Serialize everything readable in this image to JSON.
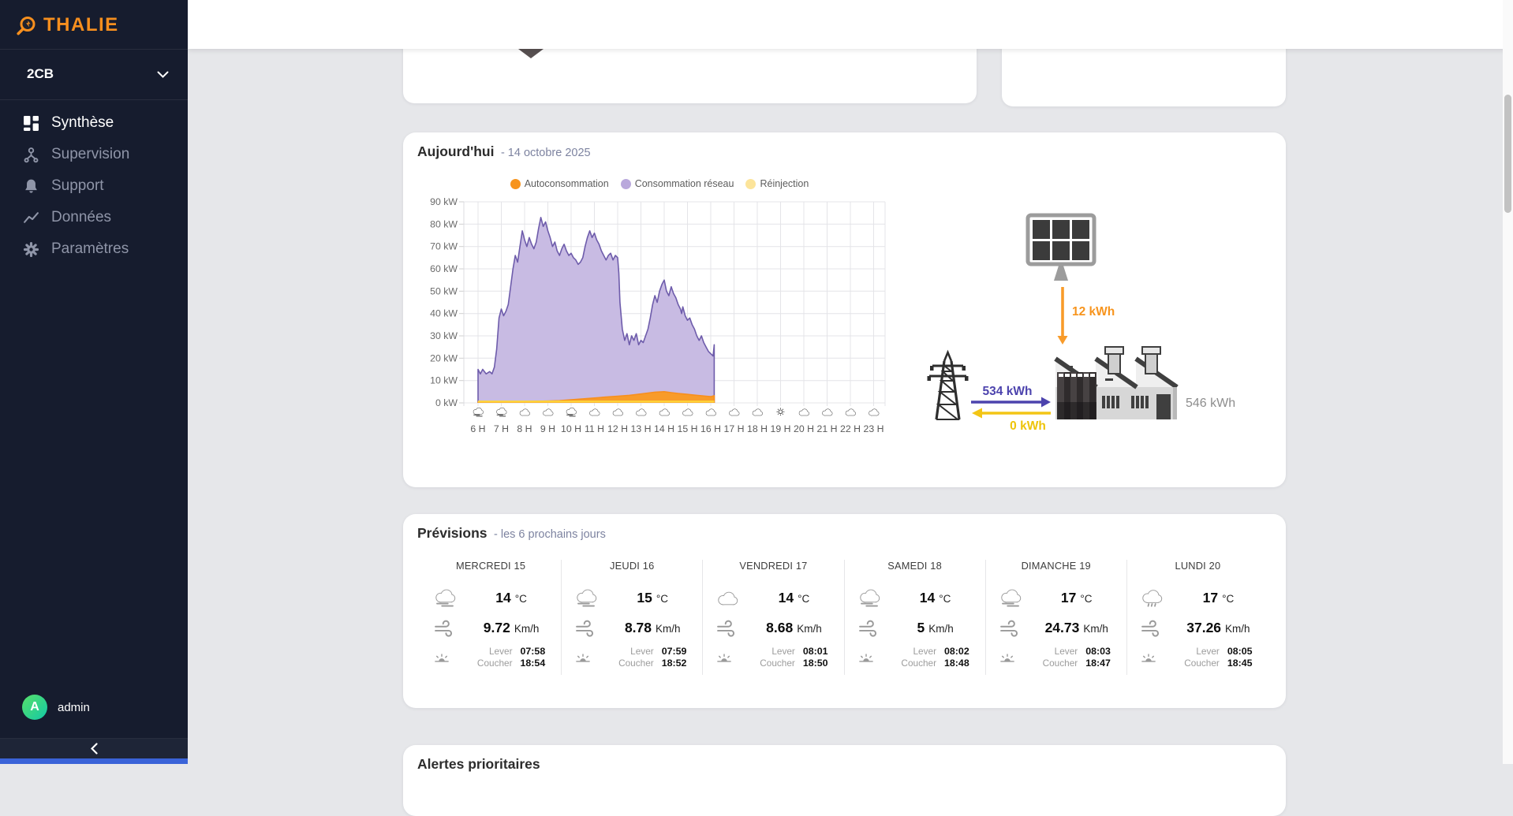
{
  "brand": {
    "logo_text": "THALIE"
  },
  "sidebar": {
    "site_selector": {
      "value": "2CB"
    },
    "items": [
      {
        "label": "Synthèse",
        "icon": "dashboard-icon",
        "active": true
      },
      {
        "label": "Supervision",
        "icon": "network-icon",
        "active": false
      },
      {
        "label": "Support",
        "icon": "bell-icon",
        "active": false
      },
      {
        "label": "Données",
        "icon": "trend-line-icon",
        "active": false
      },
      {
        "label": "Paramètres",
        "icon": "gear-icon",
        "active": false
      }
    ],
    "user": {
      "initial": "A",
      "name": "admin"
    }
  },
  "today_card": {
    "title": "Aujourd'hui",
    "subtitle": "- 14 octobre 2025",
    "legend": [
      {
        "label": "Autoconsommation",
        "color": "#f7941d"
      },
      {
        "label": "Consommation réseau",
        "color": "#b9a8dc"
      },
      {
        "label": "Réinjection",
        "color": "#fce49a"
      }
    ],
    "flow": {
      "solar_to_building": "12 kWh",
      "grid_to_building": "534 kWh",
      "building_to_grid": "0 kWh",
      "building_total": "546 kWh",
      "colors": {
        "solar": "#f7941d",
        "grid_in": "#4c43ad",
        "grid_out": "#eec40a",
        "total": "#8d8d8d"
      }
    }
  },
  "chart_data": {
    "type": "area",
    "title": "Aujourd'hui - 14 octobre 2025",
    "ylabel": "kW",
    "ylim": [
      0,
      90
    ],
    "yticks": [
      "90 kW",
      "80 kW",
      "70 kW",
      "60 kW",
      "50 kW",
      "40 kW",
      "30 kW",
      "20 kW",
      "10 kW",
      "0 kW"
    ],
    "x_labels": [
      "6 H",
      "7 H",
      "8 H",
      "9 H",
      "10 H",
      "11 H",
      "12 H",
      "13 H",
      "14 H",
      "15 H",
      "16 H",
      "17 H",
      "18 H",
      "19 H",
      "20 H",
      "21 H",
      "22 H",
      "23 H"
    ],
    "x_icons": [
      "fog",
      "fog",
      "cloud",
      "cloud",
      "fog",
      "cloud",
      "cloud",
      "cloud",
      "cloud",
      "cloud",
      "cloud",
      "cloud",
      "cloud",
      "sun",
      "cloud",
      "cloud",
      "cloud",
      "cloud"
    ],
    "grid": true,
    "legend_position": "top",
    "series": [
      {
        "name": "Consommation réseau",
        "fill": "#c8bbe3",
        "line": "#6e5cab",
        "points": [
          [
            6.0,
            15
          ],
          [
            6.1,
            13
          ],
          [
            6.2,
            15
          ],
          [
            6.35,
            13
          ],
          [
            6.5,
            14
          ],
          [
            6.6,
            13
          ],
          [
            6.7,
            16
          ],
          [
            6.8,
            24
          ],
          [
            6.9,
            38
          ],
          [
            7.0,
            42
          ],
          [
            7.1,
            39
          ],
          [
            7.2,
            41
          ],
          [
            7.3,
            44
          ],
          [
            7.4,
            52
          ],
          [
            7.5,
            60
          ],
          [
            7.6,
            66
          ],
          [
            7.7,
            63
          ],
          [
            7.8,
            70
          ],
          [
            7.9,
            77
          ],
          [
            8.0,
            73
          ],
          [
            8.1,
            70
          ],
          [
            8.2,
            74
          ],
          [
            8.3,
            71
          ],
          [
            8.4,
            69
          ],
          [
            8.5,
            72
          ],
          [
            8.6,
            78
          ],
          [
            8.7,
            83
          ],
          [
            8.8,
            79
          ],
          [
            8.9,
            81
          ],
          [
            9.0,
            77
          ],
          [
            9.1,
            74
          ],
          [
            9.2,
            70
          ],
          [
            9.3,
            72
          ],
          [
            9.4,
            68
          ],
          [
            9.5,
            66
          ],
          [
            9.6,
            69
          ],
          [
            9.7,
            71
          ],
          [
            9.8,
            68
          ],
          [
            9.9,
            66
          ],
          [
            10.0,
            67
          ],
          [
            10.1,
            65
          ],
          [
            10.2,
            64
          ],
          [
            10.3,
            62
          ],
          [
            10.4,
            63
          ],
          [
            10.5,
            65
          ],
          [
            10.6,
            70
          ],
          [
            10.7,
            74
          ],
          [
            10.8,
            77
          ],
          [
            10.9,
            74
          ],
          [
            11.0,
            76
          ],
          [
            11.1,
            73
          ],
          [
            11.2,
            71
          ],
          [
            11.3,
            68
          ],
          [
            11.4,
            66
          ],
          [
            11.5,
            64
          ],
          [
            11.6,
            66
          ],
          [
            11.7,
            67
          ],
          [
            11.8,
            64
          ],
          [
            11.9,
            66
          ],
          [
            12.0,
            65
          ],
          [
            12.05,
            58
          ],
          [
            12.1,
            45
          ],
          [
            12.2,
            33
          ],
          [
            12.3,
            28
          ],
          [
            12.4,
            31
          ],
          [
            12.5,
            26
          ],
          [
            12.6,
            30
          ],
          [
            12.7,
            28
          ],
          [
            12.8,
            31
          ],
          [
            12.9,
            26
          ],
          [
            13.0,
            28
          ],
          [
            13.1,
            27
          ],
          [
            13.2,
            30
          ],
          [
            13.3,
            33
          ],
          [
            13.4,
            38
          ],
          [
            13.5,
            44
          ],
          [
            13.6,
            48
          ],
          [
            13.7,
            45
          ],
          [
            13.8,
            50
          ],
          [
            13.9,
            53
          ],
          [
            14.0,
            55
          ],
          [
            14.1,
            50
          ],
          [
            14.2,
            48
          ],
          [
            14.3,
            52
          ],
          [
            14.4,
            49
          ],
          [
            14.5,
            47
          ],
          [
            14.6,
            44
          ],
          [
            14.7,
            42
          ],
          [
            14.75,
            40
          ],
          [
            14.8,
            43
          ],
          [
            14.9,
            39
          ],
          [
            15.0,
            37
          ],
          [
            15.1,
            38
          ],
          [
            15.2,
            35
          ],
          [
            15.3,
            33
          ],
          [
            15.4,
            30
          ],
          [
            15.5,
            28
          ],
          [
            15.6,
            30
          ],
          [
            15.7,
            27
          ],
          [
            15.8,
            25
          ],
          [
            15.9,
            23
          ],
          [
            16.0,
            22
          ],
          [
            16.1,
            21
          ],
          [
            16.15,
            26
          ]
        ]
      },
      {
        "name": "Autoconsommation",
        "fill": "#f89b2a",
        "line": "#f78f1e",
        "points": [
          [
            6.0,
            0.4
          ],
          [
            7.0,
            0.5
          ],
          [
            8.0,
            0.6
          ],
          [
            9.0,
            0.8
          ],
          [
            9.5,
            1.0
          ],
          [
            10.0,
            1.4
          ],
          [
            10.5,
            1.8
          ],
          [
            11.0,
            2.2
          ],
          [
            11.5,
            2.6
          ],
          [
            12.0,
            3.0
          ],
          [
            12.5,
            3.4
          ],
          [
            13.0,
            4.0
          ],
          [
            13.3,
            4.4
          ],
          [
            13.6,
            4.8
          ],
          [
            14.0,
            5.0
          ],
          [
            14.3,
            4.6
          ],
          [
            14.6,
            4.2
          ],
          [
            15.0,
            3.8
          ],
          [
            15.4,
            3.4
          ],
          [
            15.8,
            3.0
          ],
          [
            16.0,
            2.8
          ],
          [
            16.15,
            3.2
          ]
        ]
      },
      {
        "name": "Réinjection",
        "fill": "#ffd43a",
        "line": "#ffd43a",
        "points": [
          [
            6.0,
            0.3
          ],
          [
            16.15,
            0.3
          ]
        ]
      }
    ]
  },
  "forecast": {
    "title": "Prévisions",
    "subtitle": "- les 6 prochains jours",
    "labels": {
      "sunrise": "Lever",
      "sunset": "Coucher"
    },
    "days": [
      {
        "day": "MERCREDI 15",
        "weather_icon": "fog",
        "temp": "14",
        "temp_unit": "°C",
        "wind": "9.72",
        "wind_unit": "Km/h",
        "lever": "07:58",
        "coucher": "18:54"
      },
      {
        "day": "JEUDI 16",
        "weather_icon": "fog",
        "temp": "15",
        "temp_unit": "°C",
        "wind": "8.78",
        "wind_unit": "Km/h",
        "lever": "07:59",
        "coucher": "18:52"
      },
      {
        "day": "VENDREDI 17",
        "weather_icon": "cloud",
        "temp": "14",
        "temp_unit": "°C",
        "wind": "8.68",
        "wind_unit": "Km/h",
        "lever": "08:01",
        "coucher": "18:50"
      },
      {
        "day": "SAMEDI 18",
        "weather_icon": "fog",
        "temp": "14",
        "temp_unit": "°C",
        "wind": "5",
        "wind_unit": "Km/h",
        "lever": "08:02",
        "coucher": "18:48"
      },
      {
        "day": "DIMANCHE 19",
        "weather_icon": "fog",
        "temp": "17",
        "temp_unit": "°C",
        "wind": "24.73",
        "wind_unit": "Km/h",
        "lever": "08:03",
        "coucher": "18:47"
      },
      {
        "day": "LUNDI 20",
        "weather_icon": "rain",
        "temp": "17",
        "temp_unit": "°C",
        "wind": "37.26",
        "wind_unit": "Km/h",
        "lever": "08:05",
        "coucher": "18:45"
      }
    ]
  },
  "alerts": {
    "title": "Alertes prioritaires"
  }
}
